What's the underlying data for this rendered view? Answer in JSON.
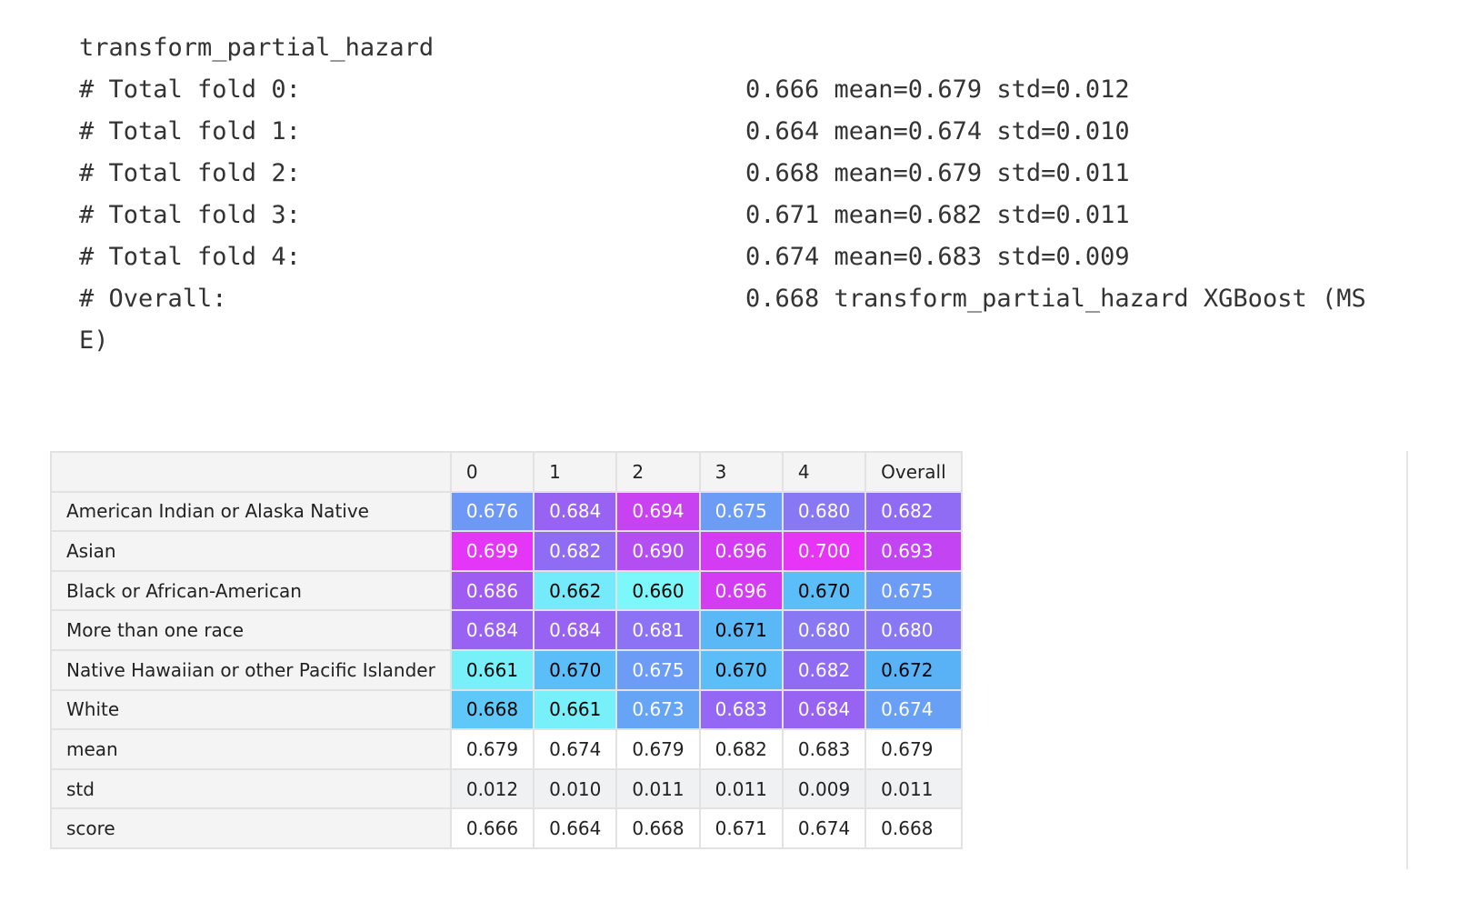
{
  "output": {
    "title": "transform_partial_hazard",
    "lines": [
      {
        "label": "# Total fold 0:",
        "text": "0.666 mean=0.679 std=0.012"
      },
      {
        "label": "# Total fold 1:",
        "text": "0.664 mean=0.674 std=0.010"
      },
      {
        "label": "# Total fold 2:",
        "text": "0.668 mean=0.679 std=0.011"
      },
      {
        "label": "# Total fold 3:",
        "text": "0.671 mean=0.682 std=0.011"
      },
      {
        "label": "# Total fold 4:",
        "text": "0.674 mean=0.683 std=0.009"
      },
      {
        "label": "# Overall:",
        "text": "0.668 transform_partial_hazard XGBoost (MSE)"
      }
    ]
  },
  "table": {
    "header": [
      "0",
      "1",
      "2",
      "3",
      "4",
      "Overall"
    ],
    "rows": [
      {
        "label": "American Indian or Alaska Native",
        "cells": [
          "0.676",
          "0.684",
          "0.694",
          "0.675",
          "0.680",
          "0.682"
        ],
        "colors": [
          "#6e98f6",
          "#9862f2",
          "#c842f2",
          "#6c9cf6",
          "#8878f4",
          "#906cf4"
        ]
      },
      {
        "label": "Asian",
        "cells": [
          "0.699",
          "0.682",
          "0.690",
          "0.696",
          "0.700",
          "0.693"
        ],
        "colors": [
          "#e436f6",
          "#906cf4",
          "#b24ef2",
          "#d43cf4",
          "#e834f6",
          "#c244f2"
        ]
      },
      {
        "label": "Black or African-American",
        "cells": [
          "0.686",
          "0.662",
          "0.660",
          "0.696",
          "0.670",
          "0.675"
        ],
        "colors": [
          "#9e5cf2",
          "#74eafa",
          "#7cf8fa",
          "#d43cf4",
          "#5cbef8",
          "#6c9cf6"
        ]
      },
      {
        "label": "More than one race",
        "cells": [
          "0.684",
          "0.684",
          "0.681",
          "0.671",
          "0.680",
          "0.680"
        ],
        "colors": [
          "#9862f2",
          "#9862f2",
          "#8c72f4",
          "#5ab8f6",
          "#8878f4",
          "#8878f4"
        ]
      },
      {
        "label": "Native Hawaiian or other Pacific Islander",
        "cells": [
          "0.661",
          "0.670",
          "0.675",
          "0.670",
          "0.682",
          "0.672"
        ],
        "colors": [
          "#78f0fa",
          "#5cbef8",
          "#6c9cf6",
          "#5cbef8",
          "#906cf4",
          "#5ab2f6"
        ]
      },
      {
        "label": "White",
        "cells": [
          "0.668",
          "0.661",
          "0.673",
          "0.683",
          "0.684",
          "0.674"
        ],
        "colors": [
          "#5ec8f8",
          "#78f0fa",
          "#66a4f6",
          "#9468f4",
          "#9862f2",
          "#68a0f6"
        ]
      },
      {
        "label": "mean",
        "cells": [
          "0.679",
          "0.674",
          "0.679",
          "0.682",
          "0.683",
          "0.679"
        ]
      },
      {
        "label": "std",
        "cells": [
          "0.012",
          "0.010",
          "0.011",
          "0.011",
          "0.009",
          "0.011"
        ]
      },
      {
        "label": "score",
        "cells": [
          "0.666",
          "0.664",
          "0.668",
          "0.671",
          "0.674",
          "0.668"
        ]
      }
    ]
  }
}
